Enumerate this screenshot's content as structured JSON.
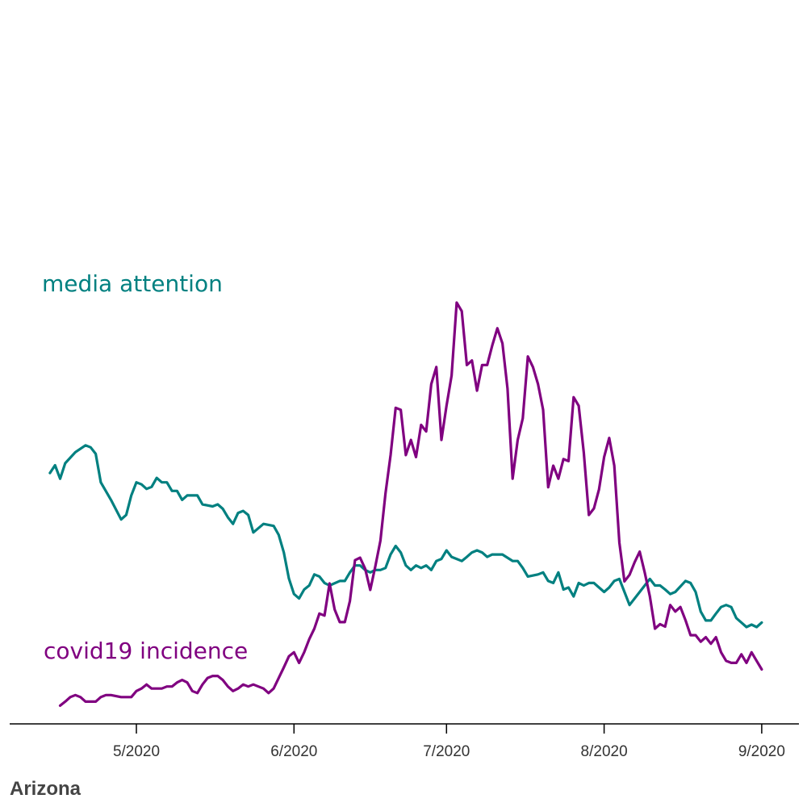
{
  "footer": {
    "state": "Arizona"
  },
  "chart_data": {
    "type": "line",
    "title": "",
    "xlabel": "",
    "ylabel": "",
    "x_axis": {
      "ticks": [
        "2020-05-01",
        "2020-06-01",
        "2020-07-01",
        "2020-08-01",
        "2020-09-01"
      ],
      "tick_labels": [
        "5/2020",
        "6/2020",
        "7/2020",
        "8/2020",
        "9/2020"
      ],
      "range": [
        "2020-04-10",
        "2020-09-08"
      ]
    },
    "y_axis": {
      "visible": false,
      "range": [
        0,
        100
      ]
    },
    "grid": false,
    "legend": "inline labels",
    "series": [
      {
        "name": "media attention",
        "color": "#008080",
        "points": [
          [
            "2020-04-14",
            58.2
          ],
          [
            "2020-04-15",
            60.1
          ],
          [
            "2020-04-16",
            56.8
          ],
          [
            "2020-04-17",
            60.6
          ],
          [
            "2020-04-19",
            63.3
          ],
          [
            "2020-04-21",
            65.0
          ],
          [
            "2020-04-22",
            64.5
          ],
          [
            "2020-04-23",
            62.9
          ],
          [
            "2020-04-24",
            55.9
          ],
          [
            "2020-04-26",
            51.6
          ],
          [
            "2020-04-28",
            46.8
          ],
          [
            "2020-04-29",
            47.9
          ],
          [
            "2020-04-30",
            52.7
          ],
          [
            "2020-05-01",
            55.9
          ],
          [
            "2020-05-02",
            55.4
          ],
          [
            "2020-05-03",
            54.3
          ],
          [
            "2020-05-04",
            54.8
          ],
          [
            "2020-05-05",
            57.0
          ],
          [
            "2020-05-06",
            55.9
          ],
          [
            "2020-05-07",
            55.9
          ],
          [
            "2020-05-08",
            53.8
          ],
          [
            "2020-05-09",
            53.8
          ],
          [
            "2020-05-10",
            51.6
          ],
          [
            "2020-05-11",
            52.7
          ],
          [
            "2020-05-13",
            52.7
          ],
          [
            "2020-05-14",
            50.5
          ],
          [
            "2020-05-16",
            50.0
          ],
          [
            "2020-05-17",
            50.5
          ],
          [
            "2020-05-18",
            49.4
          ],
          [
            "2020-05-19",
            47.3
          ],
          [
            "2020-05-20",
            45.7
          ],
          [
            "2020-05-21",
            48.4
          ],
          [
            "2020-05-22",
            48.9
          ],
          [
            "2020-05-23",
            47.9
          ],
          [
            "2020-05-24",
            43.6
          ],
          [
            "2020-05-26",
            45.7
          ],
          [
            "2020-05-28",
            45.2
          ],
          [
            "2020-05-29",
            43.0
          ],
          [
            "2020-05-30",
            38.7
          ],
          [
            "2020-05-31",
            32.3
          ],
          [
            "2020-06-01",
            28.5
          ],
          [
            "2020-06-02",
            27.4
          ],
          [
            "2020-06-03",
            29.6
          ],
          [
            "2020-06-04",
            30.6
          ],
          [
            "2020-06-05",
            33.3
          ],
          [
            "2020-06-06",
            32.8
          ],
          [
            "2020-06-07",
            31.2
          ],
          [
            "2020-06-08",
            30.6
          ],
          [
            "2020-06-10",
            31.7
          ],
          [
            "2020-06-11",
            31.7
          ],
          [
            "2020-06-12",
            33.8
          ],
          [
            "2020-06-13",
            35.5
          ],
          [
            "2020-06-14",
            35.5
          ],
          [
            "2020-06-15",
            34.4
          ],
          [
            "2020-06-16",
            33.8
          ],
          [
            "2020-06-17",
            34.4
          ],
          [
            "2020-06-18",
            34.4
          ],
          [
            "2020-06-19",
            34.9
          ],
          [
            "2020-06-20",
            38.2
          ],
          [
            "2020-06-21",
            40.3
          ],
          [
            "2020-06-22",
            38.7
          ],
          [
            "2020-06-23",
            35.5
          ],
          [
            "2020-06-24",
            34.4
          ],
          [
            "2020-06-25",
            35.5
          ],
          [
            "2020-06-26",
            34.9
          ],
          [
            "2020-06-27",
            35.5
          ],
          [
            "2020-06-28",
            34.4
          ],
          [
            "2020-06-29",
            36.6
          ],
          [
            "2020-06-30",
            37.1
          ],
          [
            "2020-07-01",
            39.2
          ],
          [
            "2020-07-02",
            37.6
          ],
          [
            "2020-07-03",
            37.1
          ],
          [
            "2020-07-04",
            36.6
          ],
          [
            "2020-07-05",
            37.6
          ],
          [
            "2020-07-06",
            38.7
          ],
          [
            "2020-07-07",
            39.2
          ],
          [
            "2020-07-08",
            38.7
          ],
          [
            "2020-07-09",
            37.6
          ],
          [
            "2020-07-10",
            38.2
          ],
          [
            "2020-07-11",
            38.2
          ],
          [
            "2020-07-12",
            38.2
          ],
          [
            "2020-07-14",
            36.6
          ],
          [
            "2020-07-15",
            36.6
          ],
          [
            "2020-07-16",
            34.9
          ],
          [
            "2020-07-17",
            32.8
          ],
          [
            "2020-07-19",
            33.3
          ],
          [
            "2020-07-20",
            33.8
          ],
          [
            "2020-07-21",
            31.7
          ],
          [
            "2020-07-22",
            31.2
          ],
          [
            "2020-07-23",
            33.8
          ],
          [
            "2020-07-24",
            29.6
          ],
          [
            "2020-07-25",
            30.1
          ],
          [
            "2020-07-26",
            27.9
          ],
          [
            "2020-07-27",
            31.2
          ],
          [
            "2020-07-28",
            30.6
          ],
          [
            "2020-07-29",
            31.2
          ],
          [
            "2020-07-30",
            31.2
          ],
          [
            "2020-07-31",
            30.1
          ],
          [
            "2020-08-01",
            29.0
          ],
          [
            "2020-08-02",
            30.1
          ],
          [
            "2020-08-03",
            31.7
          ],
          [
            "2020-08-04",
            32.2
          ],
          [
            "2020-08-05",
            29.0
          ],
          [
            "2020-08-06",
            25.8
          ],
          [
            "2020-08-08",
            29.0
          ],
          [
            "2020-08-10",
            32.2
          ],
          [
            "2020-08-11",
            30.6
          ],
          [
            "2020-08-12",
            30.6
          ],
          [
            "2020-08-13",
            29.6
          ],
          [
            "2020-08-14",
            28.5
          ],
          [
            "2020-08-15",
            29.0
          ],
          [
            "2020-08-17",
            31.7
          ],
          [
            "2020-08-18",
            31.2
          ],
          [
            "2020-08-19",
            29.0
          ],
          [
            "2020-08-20",
            24.2
          ],
          [
            "2020-08-21",
            22.0
          ],
          [
            "2020-08-22",
            22.0
          ],
          [
            "2020-08-23",
            23.7
          ],
          [
            "2020-08-24",
            25.3
          ],
          [
            "2020-08-25",
            25.8
          ],
          [
            "2020-08-26",
            25.3
          ],
          [
            "2020-08-27",
            22.6
          ],
          [
            "2020-08-28",
            21.5
          ],
          [
            "2020-08-29",
            20.4
          ],
          [
            "2020-08-30",
            21.0
          ],
          [
            "2020-08-31",
            20.4
          ],
          [
            "2020-09-01",
            21.5
          ]
        ]
      },
      {
        "name": "covid19 incidence",
        "color": "#800080",
        "points": [
          [
            "2020-04-16",
            1.1
          ],
          [
            "2020-04-17",
            2.1
          ],
          [
            "2020-04-18",
            3.2
          ],
          [
            "2020-04-19",
            3.7
          ],
          [
            "2020-04-20",
            3.2
          ],
          [
            "2020-04-21",
            2.1
          ],
          [
            "2020-04-23",
            2.1
          ],
          [
            "2020-04-24",
            3.2
          ],
          [
            "2020-04-25",
            3.7
          ],
          [
            "2020-04-26",
            3.7
          ],
          [
            "2020-04-28",
            3.2
          ],
          [
            "2020-04-29",
            3.2
          ],
          [
            "2020-04-30",
            3.2
          ],
          [
            "2020-05-01",
            4.7
          ],
          [
            "2020-05-02",
            5.3
          ],
          [
            "2020-05-03",
            6.3
          ],
          [
            "2020-05-04",
            5.3
          ],
          [
            "2020-05-06",
            5.3
          ],
          [
            "2020-05-07",
            5.8
          ],
          [
            "2020-05-08",
            5.8
          ],
          [
            "2020-05-09",
            6.8
          ],
          [
            "2020-05-10",
            7.4
          ],
          [
            "2020-05-11",
            6.8
          ],
          [
            "2020-05-12",
            4.7
          ],
          [
            "2020-05-13",
            4.2
          ],
          [
            "2020-05-14",
            6.3
          ],
          [
            "2020-05-15",
            7.9
          ],
          [
            "2020-05-16",
            8.4
          ],
          [
            "2020-05-17",
            8.4
          ],
          [
            "2020-05-18",
            7.4
          ],
          [
            "2020-05-19",
            5.8
          ],
          [
            "2020-05-20",
            4.7
          ],
          [
            "2020-05-21",
            5.3
          ],
          [
            "2020-05-22",
            6.3
          ],
          [
            "2020-05-23",
            5.8
          ],
          [
            "2020-05-24",
            6.3
          ],
          [
            "2020-05-25",
            5.8
          ],
          [
            "2020-05-26",
            5.3
          ],
          [
            "2020-05-27",
            4.2
          ],
          [
            "2020-05-28",
            5.3
          ],
          [
            "2020-05-29",
            7.9
          ],
          [
            "2020-05-30",
            10.5
          ],
          [
            "2020-05-31",
            13.2
          ],
          [
            "2020-06-01",
            14.2
          ],
          [
            "2020-06-02",
            11.6
          ],
          [
            "2020-06-03",
            14.2
          ],
          [
            "2020-06-04",
            17.4
          ],
          [
            "2020-06-05",
            20.0
          ],
          [
            "2020-06-06",
            23.7
          ],
          [
            "2020-06-07",
            23.2
          ],
          [
            "2020-06-08",
            31.1
          ],
          [
            "2020-06-09",
            24.7
          ],
          [
            "2020-06-10",
            21.6
          ],
          [
            "2020-06-11",
            21.6
          ],
          [
            "2020-06-12",
            26.8
          ],
          [
            "2020-06-13",
            36.8
          ],
          [
            "2020-06-14",
            37.4
          ],
          [
            "2020-06-15",
            34.7
          ],
          [
            "2020-06-16",
            29.5
          ],
          [
            "2020-06-17",
            35.3
          ],
          [
            "2020-06-18",
            41.6
          ],
          [
            "2020-06-19",
            53.2
          ],
          [
            "2020-06-20",
            62.6
          ],
          [
            "2020-06-21",
            74.2
          ],
          [
            "2020-06-22",
            73.7
          ],
          [
            "2020-06-23",
            62.6
          ],
          [
            "2020-06-24",
            66.3
          ],
          [
            "2020-06-25",
            62.1
          ],
          [
            "2020-06-26",
            70.0
          ],
          [
            "2020-06-27",
            68.4
          ],
          [
            "2020-06-28",
            80.0
          ],
          [
            "2020-06-29",
            84.2
          ],
          [
            "2020-06-30",
            66.3
          ],
          [
            "2020-07-01",
            74.7
          ],
          [
            "2020-07-02",
            82.1
          ],
          [
            "2020-07-03",
            100.0
          ],
          [
            "2020-07-04",
            97.9
          ],
          [
            "2020-07-05",
            84.7
          ],
          [
            "2020-07-06",
            85.8
          ],
          [
            "2020-07-07",
            78.4
          ],
          [
            "2020-07-08",
            84.7
          ],
          [
            "2020-07-09",
            84.7
          ],
          [
            "2020-07-10",
            89.5
          ],
          [
            "2020-07-11",
            93.7
          ],
          [
            "2020-07-12",
            90.0
          ],
          [
            "2020-07-13",
            78.9
          ],
          [
            "2020-07-14",
            56.8
          ],
          [
            "2020-07-15",
            66.3
          ],
          [
            "2020-07-16",
            71.6
          ],
          [
            "2020-07-17",
            86.8
          ],
          [
            "2020-07-18",
            84.2
          ],
          [
            "2020-07-19",
            80.0
          ],
          [
            "2020-07-20",
            73.7
          ],
          [
            "2020-07-21",
            54.7
          ],
          [
            "2020-07-22",
            60.0
          ],
          [
            "2020-07-23",
            56.8
          ],
          [
            "2020-07-24",
            61.6
          ],
          [
            "2020-07-25",
            61.1
          ],
          [
            "2020-07-26",
            76.8
          ],
          [
            "2020-07-27",
            74.7
          ],
          [
            "2020-07-28",
            63.2
          ],
          [
            "2020-07-29",
            47.9
          ],
          [
            "2020-07-30",
            49.5
          ],
          [
            "2020-07-31",
            54.2
          ],
          [
            "2020-08-01",
            62.1
          ],
          [
            "2020-08-02",
            66.8
          ],
          [
            "2020-08-03",
            60.0
          ],
          [
            "2020-08-04",
            41.1
          ],
          [
            "2020-08-05",
            31.6
          ],
          [
            "2020-08-06",
            33.2
          ],
          [
            "2020-08-07",
            36.3
          ],
          [
            "2020-08-08",
            38.9
          ],
          [
            "2020-08-09",
            33.7
          ],
          [
            "2020-08-10",
            27.9
          ],
          [
            "2020-08-11",
            20.0
          ],
          [
            "2020-08-12",
            21.1
          ],
          [
            "2020-08-13",
            20.5
          ],
          [
            "2020-08-14",
            25.8
          ],
          [
            "2020-08-15",
            24.2
          ],
          [
            "2020-08-16",
            25.3
          ],
          [
            "2020-08-17",
            22.1
          ],
          [
            "2020-08-18",
            18.4
          ],
          [
            "2020-08-19",
            18.4
          ],
          [
            "2020-08-20",
            16.8
          ],
          [
            "2020-08-21",
            17.9
          ],
          [
            "2020-08-22",
            16.3
          ],
          [
            "2020-08-23",
            17.9
          ],
          [
            "2020-08-24",
            14.2
          ],
          [
            "2020-08-25",
            12.1
          ],
          [
            "2020-08-26",
            11.6
          ],
          [
            "2020-08-27",
            11.6
          ],
          [
            "2020-08-28",
            13.7
          ],
          [
            "2020-08-29",
            11.6
          ],
          [
            "2020-08-30",
            14.2
          ],
          [
            "2020-08-31",
            12.1
          ],
          [
            "2020-09-01",
            10.0
          ]
        ]
      }
    ]
  }
}
